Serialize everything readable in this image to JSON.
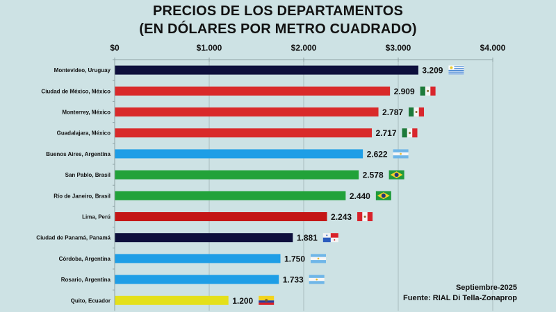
{
  "chart_data": {
    "type": "bar",
    "orientation": "horizontal",
    "title": "PRECIOS DE LOS DEPARTAMENTOS",
    "subtitle": "(EN DÓLARES POR METRO CUADRADO)",
    "xlabel": "",
    "ylabel": "",
    "xlim": [
      0,
      4000
    ],
    "x_ticks": [
      0,
      1000,
      2000,
      3000,
      4000
    ],
    "x_tick_labels": [
      "$0",
      "$1.000",
      "$2.000",
      "$3.000",
      "$4.000"
    ],
    "axis_position": "top",
    "grid": true,
    "categories": [
      "Montevideo, Uruguay",
      "Ciudad de México, México",
      "Monterrey, México",
      "Guadalajara, México",
      "Buenos Aires, Argentina",
      "San Pablo, Brasil",
      "Río de Janeiro, Brasil",
      "Lima, Perú",
      "Ciudad de Panamá, Panamá",
      "Córdoba, Argentina",
      "Rosario, Argentina",
      "Quito, Ecuador"
    ],
    "values": [
      3209,
      2909,
      2787,
      2717,
      2622,
      2578,
      2440,
      2243,
      1881,
      1750,
      1733,
      1200
    ],
    "value_labels": [
      "3.209",
      "2.909",
      "2.787",
      "2.717",
      "2.622",
      "2.578",
      "2.440",
      "2.243",
      "1.881",
      "1.750",
      "1.733",
      "1.200"
    ],
    "countries": [
      "uruguay",
      "mexico",
      "mexico",
      "mexico",
      "argentina",
      "brasil",
      "brasil",
      "peru",
      "panama",
      "argentina",
      "argentina",
      "ecuador"
    ],
    "bar_colors": [
      "#0d0f3c",
      "#d92a2a",
      "#d92a2a",
      "#d92a2a",
      "#1e9ee6",
      "#22a23a",
      "#22a23a",
      "#c41616",
      "#0d0f3c",
      "#1e9ee6",
      "#1e9ee6",
      "#e4e01a"
    ]
  },
  "footer": {
    "date": "Septiembre-2025",
    "source": "Fuente: RIAL Di Tella-Zonaprop"
  }
}
